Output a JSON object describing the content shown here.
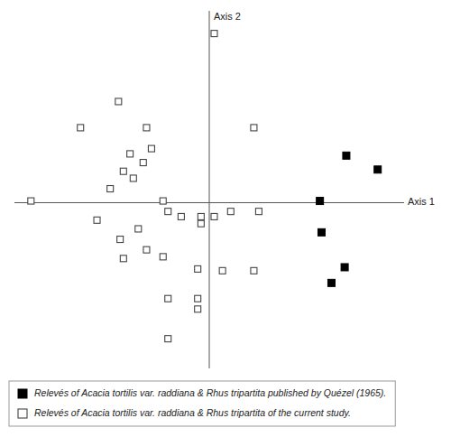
{
  "chart_data": {
    "type": "scatter",
    "x_label": "Axis 1",
    "y_label": "Axis 2",
    "xlim": [
      -1.18,
      1.18
    ],
    "ylim": [
      -0.95,
      1.1
    ],
    "tick_labels": false,
    "legend": "bottom",
    "series": [
      {
        "name": "Relevés of Acacia tortilis var. raddiana & Rhus tripartita published by Quézel (1965).",
        "color": "#000000",
        "marker": "square",
        "x": [
          0.67,
          0.83,
          1.02,
          0.68,
          0.82,
          0.74
        ],
        "values": [
          0.01,
          0.27,
          0.19,
          -0.17,
          -0.37,
          -0.46
        ]
      },
      {
        "name": "Relevés of Acacia tortilis var. raddiana & Rhus tripartita of the current study.",
        "color": "#444444",
        "marker": "open-square",
        "x": [
          0.03,
          -0.55,
          -0.78,
          -0.38,
          -0.35,
          -0.48,
          -0.4,
          -0.52,
          -0.46,
          -0.6,
          -1.08,
          -0.28,
          0.27,
          -0.25,
          -0.17,
          -0.05,
          -0.05,
          0.03,
          0.13,
          0.3,
          -0.68,
          -0.43,
          -0.54,
          -0.38,
          -0.52,
          -0.28,
          -0.07,
          0.08,
          0.27,
          -0.25,
          -0.07,
          -0.07,
          -0.25
        ],
        "values": [
          0.97,
          0.58,
          0.43,
          0.43,
          0.31,
          0.28,
          0.23,
          0.18,
          0.14,
          0.08,
          0.01,
          0.01,
          0.43,
          -0.05,
          -0.08,
          -0.08,
          -0.12,
          -0.08,
          -0.05,
          -0.05,
          -0.1,
          -0.15,
          -0.21,
          -0.27,
          -0.32,
          -0.31,
          -0.38,
          -0.39,
          -0.39,
          -0.55,
          -0.55,
          -0.61,
          -0.78
        ]
      }
    ]
  }
}
